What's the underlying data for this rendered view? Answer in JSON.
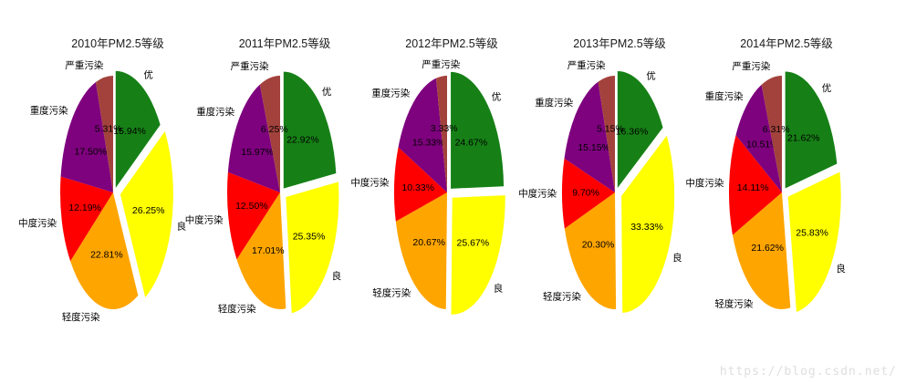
{
  "figure": {
    "background": "#ffffff",
    "watermark": "https://blog.csdn.net/"
  },
  "pie_style": {
    "slice_colors": {
      "优": "#168016",
      "良": "#FFFF00",
      "轻度污染": "#FFA500",
      "中度污染": "#FF0000",
      "重度污染": "#7E017E",
      "严重污染": "#A3423C"
    },
    "explode": {
      "优": 0.1,
      "良": 0.14
    },
    "start_angle_deg": 0,
    "direction": "clockwise"
  },
  "chart_data": [
    {
      "type": "pie",
      "title": "2010年PM2.5等级",
      "labels": [
        "优",
        "良",
        "轻度污染",
        "中度污染",
        "重度污染",
        "严重污染"
      ],
      "values": [
        15.94,
        26.25,
        22.81,
        12.19,
        17.5,
        5.31
      ],
      "unit": "%"
    },
    {
      "type": "pie",
      "title": "2011年PM2.5等级",
      "labels": [
        "优",
        "良",
        "轻度污染",
        "中度污染",
        "重度污染",
        "严重污染"
      ],
      "values": [
        22.92,
        25.35,
        17.01,
        12.5,
        15.97,
        6.25
      ],
      "unit": "%"
    },
    {
      "type": "pie",
      "title": "2012年PM2.5等级",
      "labels": [
        "优",
        "良",
        "轻度污染",
        "中度污染",
        "重度污染",
        "严重污染"
      ],
      "values": [
        24.67,
        25.67,
        20.67,
        10.33,
        15.33,
        3.33
      ],
      "unit": "%"
    },
    {
      "type": "pie",
      "title": "2013年PM2.5等级",
      "labels": [
        "优",
        "良",
        "轻度污染",
        "中度污染",
        "重度污染",
        "严重污染"
      ],
      "values": [
        16.36,
        33.33,
        20.3,
        9.7,
        15.15,
        5.15
      ],
      "unit": "%"
    },
    {
      "type": "pie",
      "title": "2014年PM2.5等级",
      "labels": [
        "优",
        "良",
        "轻度污染",
        "中度污染",
        "重度污染",
        "严重污染"
      ],
      "values": [
        21.62,
        25.83,
        21.62,
        14.11,
        10.51,
        6.31
      ],
      "unit": "%"
    }
  ]
}
